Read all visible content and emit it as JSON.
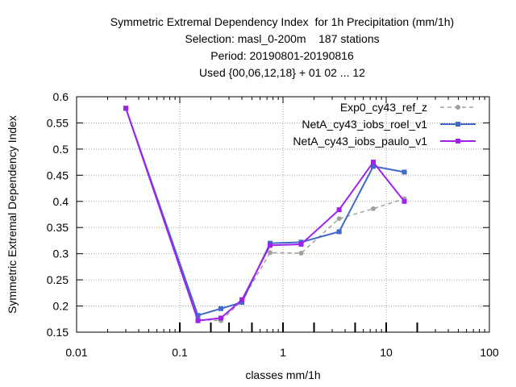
{
  "chart_data": {
    "type": "line",
    "title_lines": [
      "Symmetric Extremal Dependency Index  for 1h Precipitation (mm/1h)",
      "Selection: masl_0-200m    187 stations",
      "Period: 20190801-20190816",
      "Used {00,06,12,18} + 01 02 ... 12"
    ],
    "xlabel": "classes mm/1h",
    "ylabel": "Symmetric Extremal Dependency Index",
    "xscale": "log",
    "xlim": [
      0.01,
      100
    ],
    "ylim": [
      0.15,
      0.6
    ],
    "x_ticks": [
      0.01,
      0.1,
      1,
      10,
      100
    ],
    "x_tick_labels": [
      "0.01",
      "0.1",
      "1",
      "10",
      "100"
    ],
    "y_ticks": [
      0.15,
      0.2,
      0.25,
      0.3,
      0.35,
      0.4,
      0.45,
      0.5,
      0.55,
      0.6
    ],
    "y_tick_labels": [
      "0.15",
      "0.2",
      "0.25",
      "0.3",
      "0.35",
      "0.4",
      "0.45",
      "0.5",
      "0.55",
      "0.6"
    ],
    "class_markers": [
      0.1,
      0.2,
      0.3,
      0.5,
      1,
      2,
      5,
      10,
      20
    ],
    "grid": true,
    "legend_position": "top-right",
    "series": [
      {
        "name": "Exp0_cy43_ref_z",
        "color": "#a0a0a0",
        "dash": true,
        "x": [
          0.03,
          0.15,
          0.25,
          0.4,
          0.75,
          1.5,
          3.5,
          7.5,
          15
        ],
        "y": [
          0.578,
          0.174,
          0.172,
          0.21,
          0.302,
          0.301,
          0.367,
          0.386,
          0.405
        ]
      },
      {
        "name": "NetA_cy43_iobs_roel_v1",
        "color": "#4169c8",
        "dash": false,
        "x": [
          0.03,
          0.15,
          0.25,
          0.4,
          0.75,
          1.5,
          3.5,
          7.5,
          15
        ],
        "y": [
          0.578,
          0.182,
          0.195,
          0.207,
          0.32,
          0.322,
          0.342,
          0.467,
          0.456
        ]
      },
      {
        "name": "NetA_cy43_iobs_paulo_v1",
        "color": "#a020f0",
        "dash": false,
        "x": [
          0.03,
          0.15,
          0.25,
          0.4,
          0.75,
          1.5,
          3.5,
          7.5,
          15
        ],
        "y": [
          0.578,
          0.172,
          0.177,
          0.212,
          0.316,
          0.318,
          0.384,
          0.475,
          0.4
        ]
      }
    ]
  }
}
